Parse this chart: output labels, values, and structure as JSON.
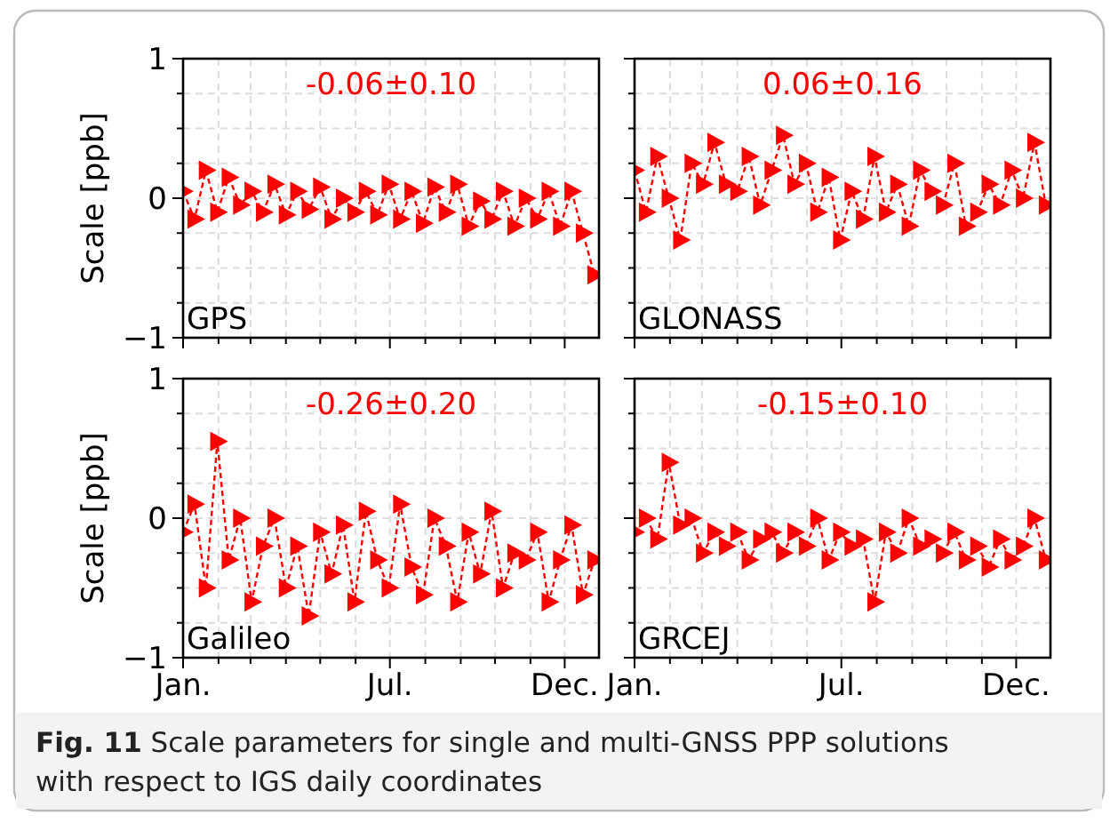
{
  "chart_data": [
    {
      "type": "line",
      "ylabel": "Scale [ppb]",
      "annotations": [
        "-0.06±0.10",
        "GPS",
        "Fig. 11  Scale parameters for single and multi-GNSS PPP solutions with respect to IGS daily coordinates"
      ],
      "x": [
        "--01-01",
        "--01-11",
        "--01-21",
        "--01-31",
        "--02-10",
        "--02-20",
        "--03-02",
        "--03-12",
        "--03-22",
        "--04-01",
        "--04-11",
        "--04-21",
        "--05-01",
        "--05-11",
        "--05-21",
        "--05-31",
        "--06-10",
        "--06-20",
        "--06-30",
        "--07-10",
        "--07-20",
        "--07-30",
        "--08-09",
        "--08-19",
        "--08-29",
        "--09-08",
        "--09-18",
        "--09-28",
        "--10-08",
        "--10-18",
        "--10-28",
        "--11-07",
        "--11-17",
        "--11-27",
        "--12-07",
        "--12-17",
        "--12-27"
      ],
      "series": [
        {
          "color": "#ff0000",
          "values": [
            0.05,
            -0.15,
            0.2,
            -0.1,
            0.15,
            -0.05,
            0.05,
            -0.1,
            0.1,
            -0.12,
            0.05,
            -0.08,
            0.08,
            -0.15,
            0.0,
            -0.1,
            0.05,
            -0.12,
            0.1,
            -0.15,
            0.05,
            -0.18,
            0.08,
            -0.1,
            0.1,
            -0.2,
            -0.02,
            -0.15,
            0.05,
            -0.2,
            0.0,
            -0.15,
            0.05,
            -0.2,
            0.05,
            -0.25,
            -0.55
          ]
        }
      ],
      "xlim": [
        "--01-01",
        "--12-31"
      ],
      "xticks": [
        {
          "value": "--01-01",
          "label": null
        },
        {
          "value": "--02-01",
          "label": null
        },
        {
          "value": "--03-01",
          "label": null
        },
        {
          "value": "--04-01",
          "label": null
        },
        {
          "value": "--05-01",
          "label": null
        },
        {
          "value": "--06-01",
          "label": null
        },
        {
          "value": "--07-01",
          "label": null
        },
        {
          "value": "--08-01",
          "label": null
        },
        {
          "value": "--09-01",
          "label": null
        },
        {
          "value": "--10-01",
          "label": null
        },
        {
          "value": "--11-01",
          "label": null
        },
        {
          "value": "--12-01",
          "label": null
        }
      ],
      "ylim": [
        -1,
        1
      ],
      "yticks": [
        {
          "value": -1,
          "label": "−1"
        },
        {
          "value": -0.75,
          "label": null
        },
        {
          "value": -0.5,
          "label": null
        },
        {
          "value": -0.25,
          "label": null
        },
        {
          "value": 0,
          "label": "0"
        },
        {
          "value": 0.25,
          "label": null
        },
        {
          "value": 0.5,
          "label": null
        },
        {
          "value": 0.75,
          "label": null
        },
        {
          "value": 1,
          "label": "1"
        }
      ],
      "grid": true,
      "marker": "triangle",
      "line_style": "dashed",
      "tick_labels": "y"
    },
    {
      "type": "line",
      "annotations": [
        "0.06±0.16",
        "GLONASS"
      ],
      "x": [
        "--01-01",
        "--01-11",
        "--01-21",
        "--01-31",
        "--02-10",
        "--02-20",
        "--03-02",
        "--03-12",
        "--03-22",
        "--04-01",
        "--04-11",
        "--04-21",
        "--05-01",
        "--05-11",
        "--05-21",
        "--05-31",
        "--06-10",
        "--06-20",
        "--06-30",
        "--07-10",
        "--07-20",
        "--07-30",
        "--08-09",
        "--08-19",
        "--08-29",
        "--09-08",
        "--09-18",
        "--09-28",
        "--10-08",
        "--10-18",
        "--10-28",
        "--11-07",
        "--11-17",
        "--11-27",
        "--12-07",
        "--12-17",
        "--12-27"
      ],
      "series": [
        {
          "color": "#ff0000",
          "values": [
            0.2,
            -0.1,
            0.3,
            0.0,
            -0.3,
            0.25,
            0.1,
            0.4,
            0.1,
            0.05,
            0.3,
            -0.05,
            0.2,
            0.45,
            0.1,
            0.25,
            -0.1,
            0.15,
            -0.3,
            0.05,
            -0.15,
            0.3,
            -0.1,
            0.1,
            -0.2,
            0.2,
            0.05,
            -0.05,
            0.25,
            -0.2,
            -0.1,
            0.1,
            -0.05,
            0.2,
            0.0,
            0.4,
            -0.05
          ]
        }
      ],
      "xlim": [
        "--01-01",
        "--12-31"
      ],
      "xticks": [
        {
          "value": "--01-01",
          "label": null
        },
        {
          "value": "--02-01",
          "label": null
        },
        {
          "value": "--03-01",
          "label": null
        },
        {
          "value": "--04-01",
          "label": null
        },
        {
          "value": "--05-01",
          "label": null
        },
        {
          "value": "--06-01",
          "label": null
        },
        {
          "value": "--07-01",
          "label": null
        },
        {
          "value": "--08-01",
          "label": null
        },
        {
          "value": "--09-01",
          "label": null
        },
        {
          "value": "--10-01",
          "label": null
        },
        {
          "value": "--11-01",
          "label": null
        },
        {
          "value": "--12-01",
          "label": null
        }
      ],
      "ylim": [
        -1,
        1
      ],
      "yticks": [
        {
          "value": -1,
          "label": null
        },
        {
          "value": -0.75,
          "label": null
        },
        {
          "value": -0.5,
          "label": null
        },
        {
          "value": -0.25,
          "label": null
        },
        {
          "value": 0,
          "label": null
        },
        {
          "value": 0.25,
          "label": null
        },
        {
          "value": 0.5,
          "label": null
        },
        {
          "value": 0.75,
          "label": null
        },
        {
          "value": 1,
          "label": null
        }
      ],
      "grid": true,
      "marker": "triangle",
      "line_style": "dashed",
      "tick_labels": false
    },
    {
      "type": "line",
      "ylabel": "Scale [ppb]",
      "annotations": [
        "-0.26±0.20",
        "Galileo"
      ],
      "x": [
        "--01-01",
        "--01-11",
        "--01-21",
        "--01-31",
        "--02-10",
        "--02-20",
        "--03-02",
        "--03-12",
        "--03-22",
        "--04-01",
        "--04-11",
        "--04-21",
        "--05-01",
        "--05-11",
        "--05-21",
        "--05-31",
        "--06-10",
        "--06-20",
        "--06-30",
        "--07-10",
        "--07-20",
        "--07-30",
        "--08-09",
        "--08-19",
        "--08-29",
        "--09-08",
        "--09-18",
        "--09-28",
        "--10-08",
        "--10-18",
        "--10-28",
        "--11-07",
        "--11-17",
        "--11-27",
        "--12-07",
        "--12-17",
        "--12-27"
      ],
      "series": [
        {
          "color": "#ff0000",
          "values": [
            -0.1,
            0.1,
            -0.5,
            0.55,
            -0.3,
            0.0,
            -0.6,
            -0.2,
            0.0,
            -0.5,
            -0.2,
            -0.7,
            -0.1,
            -0.4,
            -0.05,
            -0.6,
            0.05,
            -0.3,
            -0.5,
            0.1,
            -0.35,
            -0.55,
            0.0,
            -0.2,
            -0.6,
            -0.1,
            -0.4,
            0.05,
            -0.5,
            -0.25,
            -0.3,
            -0.1,
            -0.6,
            -0.3,
            -0.05,
            -0.55,
            -0.3
          ]
        }
      ],
      "xlim": [
        "--01-01",
        "--12-31"
      ],
      "xticks": [
        {
          "value": "--01-01",
          "label": "Jan."
        },
        {
          "value": "--02-01",
          "label": null
        },
        {
          "value": "--03-01",
          "label": null
        },
        {
          "value": "--04-01",
          "label": null
        },
        {
          "value": "--05-01",
          "label": null
        },
        {
          "value": "--06-01",
          "label": null
        },
        {
          "value": "--07-01",
          "label": "Jul."
        },
        {
          "value": "--08-01",
          "label": null
        },
        {
          "value": "--09-01",
          "label": null
        },
        {
          "value": "--10-01",
          "label": null
        },
        {
          "value": "--11-01",
          "label": null
        },
        {
          "value": "--12-01",
          "label": "Dec."
        }
      ],
      "ylim": [
        -1,
        1
      ],
      "yticks": [
        {
          "value": -1,
          "label": "−1"
        },
        {
          "value": -0.75,
          "label": null
        },
        {
          "value": -0.5,
          "label": null
        },
        {
          "value": -0.25,
          "label": null
        },
        {
          "value": 0,
          "label": "0"
        },
        {
          "value": 0.25,
          "label": null
        },
        {
          "value": 0.5,
          "label": null
        },
        {
          "value": 0.75,
          "label": null
        },
        {
          "value": 1,
          "label": "1"
        }
      ],
      "grid": true,
      "marker": "triangle",
      "line_style": "dashed"
    },
    {
      "type": "line",
      "annotations": [
        "-0.15±0.10",
        "GRCEJ"
      ],
      "x": [
        "--01-01",
        "--01-11",
        "--01-21",
        "--01-31",
        "--02-10",
        "--02-20",
        "--03-02",
        "--03-12",
        "--03-22",
        "--04-01",
        "--04-11",
        "--04-21",
        "--05-01",
        "--05-11",
        "--05-21",
        "--05-31",
        "--06-10",
        "--06-20",
        "--06-30",
        "--07-10",
        "--07-20",
        "--07-30",
        "--08-09",
        "--08-19",
        "--08-29",
        "--09-08",
        "--09-18",
        "--09-28",
        "--10-08",
        "--10-18",
        "--10-28",
        "--11-07",
        "--11-17",
        "--11-27",
        "--12-07",
        "--12-17",
        "--12-27"
      ],
      "series": [
        {
          "color": "#ff0000",
          "values": [
            -0.1,
            0.0,
            -0.15,
            0.4,
            -0.05,
            0.0,
            -0.25,
            -0.1,
            -0.2,
            -0.1,
            -0.3,
            -0.15,
            -0.1,
            -0.25,
            -0.1,
            -0.2,
            0.0,
            -0.3,
            -0.1,
            -0.2,
            -0.15,
            -0.6,
            -0.1,
            -0.25,
            0.0,
            -0.2,
            -0.15,
            -0.25,
            -0.1,
            -0.3,
            -0.2,
            -0.35,
            -0.15,
            -0.3,
            -0.2,
            0.0,
            -0.3
          ]
        }
      ],
      "xlim": [
        "--01-01",
        "--12-31"
      ],
      "xticks": [
        {
          "value": "--01-01",
          "label": "Jan."
        },
        {
          "value": "--02-01",
          "label": null
        },
        {
          "value": "--03-01",
          "label": null
        },
        {
          "value": "--04-01",
          "label": null
        },
        {
          "value": "--05-01",
          "label": null
        },
        {
          "value": "--06-01",
          "label": null
        },
        {
          "value": "--07-01",
          "label": "Jul."
        },
        {
          "value": "--08-01",
          "label": null
        },
        {
          "value": "--09-01",
          "label": null
        },
        {
          "value": "--10-01",
          "label": null
        },
        {
          "value": "--11-01",
          "label": null
        },
        {
          "value": "--12-01",
          "label": "Dec."
        }
      ],
      "ylim": [
        -1,
        1
      ],
      "yticks": [
        {
          "value": -1,
          "label": null
        },
        {
          "value": -0.75,
          "label": null
        },
        {
          "value": -0.5,
          "label": null
        },
        {
          "value": -0.25,
          "label": null
        },
        {
          "value": 0,
          "label": null
        },
        {
          "value": 0.25,
          "label": null
        },
        {
          "value": 0.5,
          "label": null
        },
        {
          "value": 0.75,
          "label": null
        },
        {
          "value": 1,
          "label": null
        }
      ],
      "grid": true,
      "marker": "triangle",
      "line_style": "dashed",
      "tick_labels": "x"
    }
  ]
}
